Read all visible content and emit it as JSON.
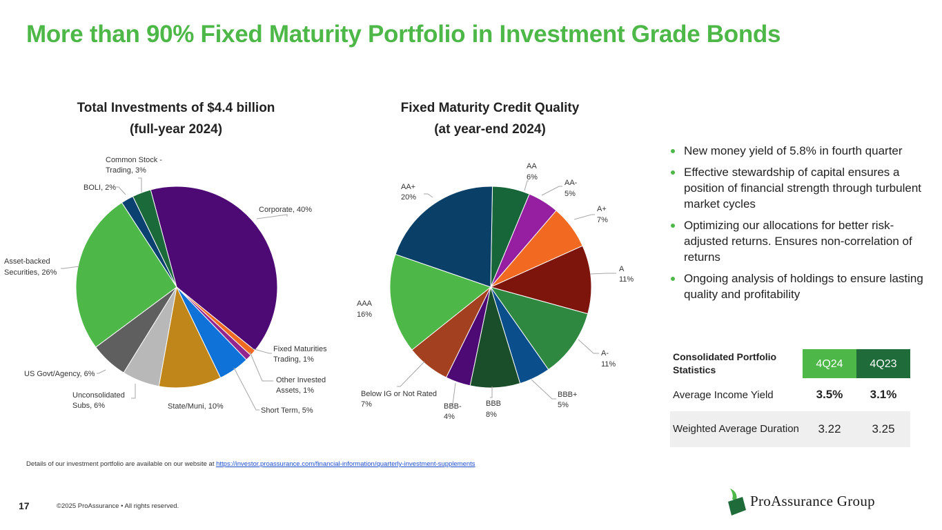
{
  "header": {
    "title": "More than 90% Fixed Maturity Portfolio in Investment Grade Bonds"
  },
  "left_chart_title": {
    "line1": "Total Investments of $4.4 billion",
    "line2": "(full-year 2024)"
  },
  "right_chart_title": {
    "line1": "Fixed Maturity Credit Quality",
    "line2": "(at year-end 2024)"
  },
  "chart_data": [
    {
      "type": "pie",
      "title": "Total Investments of $4.4 billion (full-year 2024)",
      "slices": [
        {
          "label": "Corporate, 40%",
          "value": 40,
          "color": "#4e0a74"
        },
        {
          "label": "Fixed Maturities Trading, 1%",
          "value": 1,
          "color": "#f26a21"
        },
        {
          "label": "Other Invested Assets, 1%",
          "value": 1,
          "color": "#93278f"
        },
        {
          "label": "Short Term, 5%",
          "value": 5,
          "color": "#0f72d9"
        },
        {
          "label": "State/Muni, 10%",
          "value": 10,
          "color": "#c0861a"
        },
        {
          "label": "Unconsolidated Subs, 6%",
          "value": 6,
          "color": "#b8b8b8"
        },
        {
          "label": "US Govt/Agency, 6%",
          "value": 6,
          "color": "#5f5f5f"
        },
        {
          "label": "Asset-backed Securities, 26%",
          "value": 26,
          "color": "#4db848"
        },
        {
          "label": "BOLI, 2%",
          "value": 2,
          "color": "#0a4170"
        },
        {
          "label": "Common Stock - Trading, 3%",
          "value": 3,
          "color": "#1b6b3a"
        }
      ]
    },
    {
      "type": "pie",
      "title": "Fixed Maturity Credit Quality (at year-end 2024)",
      "slices": [
        {
          "label": "AA 6%",
          "value": 6,
          "color": "#16663a"
        },
        {
          "label": "AA- 5%",
          "value": 5,
          "color": "#951fa0"
        },
        {
          "label": "A+ 7%",
          "value": 7,
          "color": "#f26a21"
        },
        {
          "label": "A 11%",
          "value": 11,
          "color": "#7d150d"
        },
        {
          "label": "A- 11%",
          "value": 11,
          "color": "#2e8840"
        },
        {
          "label": "BBB+ 5%",
          "value": 5,
          "color": "#0a4f8c"
        },
        {
          "label": "BBB 8%",
          "value": 8,
          "color": "#1a4d2a"
        },
        {
          "label": "BBB- 4%",
          "value": 4,
          "color": "#4e0a74"
        },
        {
          "label": "Below IG or Not Rated 7%",
          "value": 7,
          "color": "#a3401f"
        },
        {
          "label": "AAA 16%",
          "value": 16,
          "color": "#4db848"
        },
        {
          "label": "AA+ 20%",
          "value": 20,
          "color": "#0a3f68"
        }
      ]
    }
  ],
  "labels_left": {
    "corporate": "Corporate, 40%",
    "fm_trading_1": "Fixed Maturities",
    "fm_trading_2": "Trading, 1%",
    "other_inv_1": "Other Invested",
    "other_inv_2": "Assets, 1%",
    "short_term": "Short Term, 5%",
    "state_muni": "State/Muni, 10%",
    "unconsol_1": "Unconsolidated",
    "unconsol_2": "Subs, 6%",
    "us_govt": "US Govt/Agency, 6%",
    "abs_1": "Asset-backed",
    "abs_2": "Securities, 26%",
    "boli": "BOLI, 2%",
    "common_1": "Common Stock -",
    "common_2": "Trading, 3%"
  },
  "labels_right": {
    "aa_name": "AA",
    "aa_pct": "6%",
    "aam_name": "AA-",
    "aam_pct": "5%",
    "ap_name": "A+",
    "ap_pct": "7%",
    "a_name": "A",
    "a_pct": "11%",
    "am_name": "A-",
    "am_pct": "11%",
    "bbbp_name": "BBB+",
    "bbbp_pct": "5%",
    "bbb_name": "BBB",
    "bbb_pct": "8%",
    "bbbm_name": "BBB-",
    "bbbm_pct": "4%",
    "below_name": "Below IG or Not Rated",
    "below_pct": "7%",
    "aaa_name": "AAA",
    "aaa_pct": "16%",
    "aap_name": "AA+",
    "aap_pct": "20%"
  },
  "bullets": [
    "New money yield of 5.8% in fourth quarter",
    "Effective stewardship of capital ensures a position of financial strength through turbulent market cycles",
    "Optimizing our allocations for better risk-adjusted returns. Ensures non-correlation of returns",
    "Ongoing analysis of holdings to ensure lasting quality and profitability"
  ],
  "stats_table": {
    "header": "Consolidated Portfolio Statistics",
    "col1": "4Q24",
    "col2": "4Q23",
    "rows": [
      {
        "label": "Average Income Yield",
        "v1": "3.5%",
        "v2": "3.1%"
      },
      {
        "label": "Weighted Average Duration",
        "v1": "3.22",
        "v2": "3.25"
      }
    ]
  },
  "footnote": {
    "text": "Details of our investment portfolio are available on our website at ",
    "link": "https://investor.proassurance.com/financial-information/quarterly-investment-supplements"
  },
  "footer": {
    "page_number": "17",
    "copyright": "©2025 ProAssurance  •  All rights reserved.",
    "logo_text": "ProAssurance Group"
  },
  "colors": {
    "accent": "#4db848",
    "dark_green": "#1f6b3a"
  }
}
